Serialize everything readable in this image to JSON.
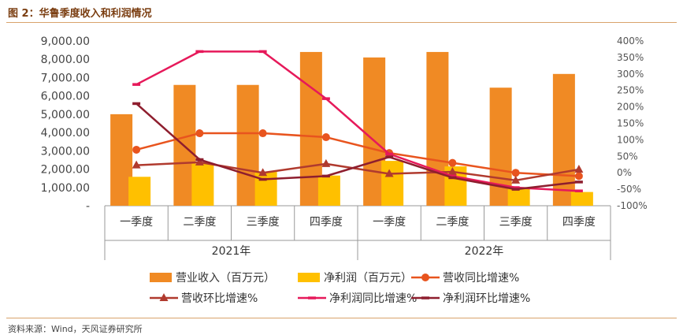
{
  "title": "图 2：华鲁季度收入和利润情况",
  "source": "资料来源：Wind，天风证券研究所",
  "colors": {
    "revenue": "#F08A24",
    "profit": "#FFC000",
    "rev_yoy": "#E8541E",
    "rev_qoq": "#B03A2E",
    "profit_yoy": "#E6195A",
    "profit_qoq": "#8E1E2E",
    "axis": "#999999",
    "grid": "#e6e6e6"
  },
  "chart_data": {
    "type": "bar",
    "categories": [
      "一季度",
      "二季度",
      "三季度",
      "四季度",
      "一季度",
      "二季度",
      "三季度",
      "四季度"
    ],
    "groups": [
      {
        "label": "2021年",
        "count": 4
      },
      {
        "label": "2022年",
        "count": 4
      }
    ],
    "y_left": {
      "min": 0,
      "max": 9000,
      "ticks": [
        "-",
        "1,000.00",
        "2,000.00",
        "3,000.00",
        "4,000.00",
        "5,000.00",
        "6,000.00",
        "7,000.00",
        "8,000.00",
        "9,000.00"
      ]
    },
    "y_right": {
      "min": -100,
      "max": 400,
      "ticks": [
        "-100%",
        "-50%",
        "0%",
        "50%",
        "100%",
        "150%",
        "200%",
        "250%",
        "300%",
        "350%",
        "400%"
      ]
    },
    "series": [
      {
        "name": "营业收入（百万元）",
        "kind": "bar",
        "axis": "left",
        "color_key": "revenue",
        "values": [
          5000,
          6600,
          6600,
          8400,
          8100,
          8400,
          6450,
          7200
        ]
      },
      {
        "name": "净利润（百万元）",
        "kind": "bar",
        "axis": "left",
        "color_key": "profit",
        "values": [
          1580,
          2300,
          1850,
          1650,
          2450,
          2150,
          1000,
          750
        ]
      },
      {
        "name": "营收同比增速%",
        "kind": "line",
        "marker": "circle",
        "axis": "right",
        "color_key": "rev_yoy",
        "values": [
          70,
          120,
          120,
          108,
          60,
          30,
          0,
          -10
        ]
      },
      {
        "name": "营收环比增速%",
        "kind": "line",
        "marker": "triangle",
        "axis": "right",
        "color_key": "rev_qoq",
        "values": [
          23,
          32,
          0,
          27,
          -3,
          3,
          -23,
          10
        ]
      },
      {
        "name": "净利润同比增速%",
        "kind": "line",
        "marker": "dash",
        "axis": "right",
        "color_key": "profit_yoy",
        "values": [
          268,
          368,
          368,
          225,
          57,
          -10,
          -45,
          -55
        ]
      },
      {
        "name": "净利润环比增速%",
        "kind": "line",
        "marker": "dash",
        "axis": "right",
        "color_key": "profit_qoq",
        "values": [
          210,
          40,
          -20,
          -10,
          48,
          -15,
          -50,
          -28
        ]
      }
    ]
  }
}
